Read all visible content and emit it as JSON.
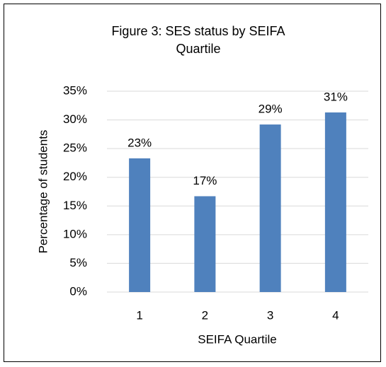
{
  "chart_data": {
    "type": "bar",
    "title": "Figure 3: SES status by SEIFA Quartile",
    "categories": [
      "1",
      "2",
      "3",
      "4"
    ],
    "values": [
      23.3,
      16.7,
      29.2,
      31.3
    ],
    "value_labels": [
      "23%",
      "17%",
      "29%",
      "31%"
    ],
    "color": "#4f81bd",
    "x_label": "SEIFA Quartile",
    "y_label": "Percentage of students",
    "ylim": [
      0,
      35
    ],
    "yticks": [
      {
        "value": 0,
        "label": "0%"
      },
      {
        "value": 5,
        "label": "5%"
      },
      {
        "value": 10,
        "label": "10%"
      },
      {
        "value": 15,
        "label": "15%"
      },
      {
        "value": 20,
        "label": "20%"
      },
      {
        "value": 25,
        "label": "25%"
      },
      {
        "value": 30,
        "label": "30%"
      },
      {
        "value": 35,
        "label": "35%"
      }
    ],
    "grid": true
  }
}
